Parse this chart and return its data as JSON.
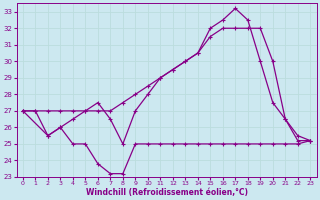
{
  "xlabel": "Windchill (Refroidissement éolien,°C)",
  "bg_color": "#cce8f0",
  "line_color": "#880088",
  "grid_color": "#aadddd",
  "xlim": [
    -0.5,
    23.5
  ],
  "ylim": [
    23.0,
    33.5
  ],
  "yticks": [
    23,
    24,
    25,
    26,
    27,
    28,
    29,
    30,
    31,
    32,
    33
  ],
  "xticks": [
    0,
    1,
    2,
    3,
    4,
    5,
    6,
    7,
    8,
    9,
    10,
    11,
    12,
    13,
    14,
    15,
    16,
    17,
    18,
    19,
    20,
    21,
    22,
    23
  ],
  "line1_x": [
    0,
    1,
    2,
    3,
    4,
    5,
    6,
    7,
    8,
    9,
    10,
    11,
    12,
    13,
    14,
    15,
    16,
    17,
    18,
    19,
    20,
    21,
    22,
    23
  ],
  "line1_y": [
    27.0,
    27.0,
    25.5,
    26.0,
    25.0,
    25.0,
    23.8,
    23.2,
    23.2,
    25.0,
    25.0,
    25.0,
    25.0,
    25.0,
    25.0,
    25.0,
    25.0,
    25.0,
    25.0,
    25.0,
    25.0,
    25.0,
    25.0,
    25.2
  ],
  "line2_x": [
    0,
    1,
    2,
    3,
    4,
    5,
    6,
    7,
    8,
    9,
    10,
    11,
    12,
    13,
    14,
    15,
    16,
    17,
    18,
    19,
    20,
    21,
    22,
    23
  ],
  "line2_y": [
    27.0,
    27.0,
    27.0,
    27.0,
    27.0,
    27.0,
    27.0,
    27.0,
    27.5,
    28.0,
    28.5,
    29.0,
    29.5,
    30.0,
    30.5,
    31.5,
    32.0,
    32.0,
    32.0,
    32.0,
    30.0,
    26.5,
    25.5,
    25.2
  ],
  "line3_x": [
    0,
    2,
    3,
    4,
    5,
    6,
    7,
    8,
    9,
    10,
    11,
    12,
    13,
    14,
    15,
    16,
    17,
    18,
    19,
    20,
    21,
    22,
    23
  ],
  "line3_y": [
    27.0,
    25.5,
    26.0,
    26.5,
    27.0,
    27.5,
    26.5,
    25.0,
    27.0,
    28.0,
    29.0,
    29.5,
    30.0,
    30.5,
    32.0,
    32.5,
    33.2,
    32.5,
    30.0,
    27.5,
    26.5,
    25.2,
    25.2
  ]
}
